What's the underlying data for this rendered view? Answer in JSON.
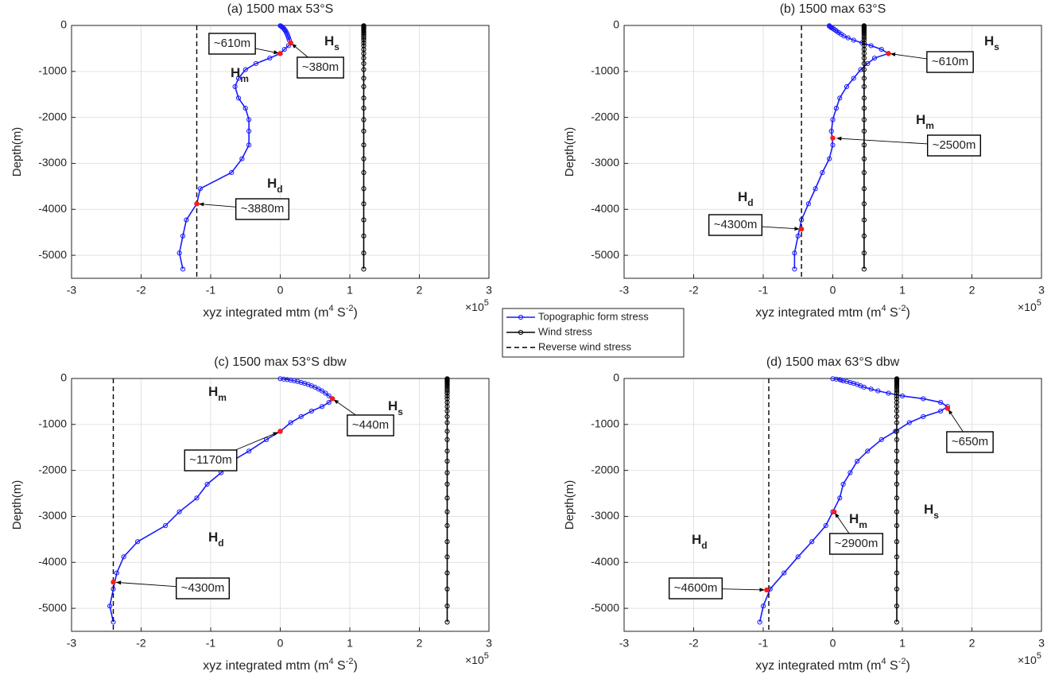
{
  "chart_data": [
    {
      "type": "line",
      "title": "(a) 1500 max 53°S",
      "xlabel": [
        "xyz integrated mtm (m",
        "4",
        " S",
        "-2",
        ")"
      ],
      "x_multiplier": {
        "base": "×10",
        "exp": "5"
      },
      "ylabel": "Depth(m)",
      "xlim": [
        -3,
        3
      ],
      "xticks": [
        -3,
        -2,
        -1,
        0,
        1,
        2,
        3
      ],
      "ylim": [
        -5500,
        0
      ],
      "yticks": [
        -5000,
        -4000,
        -3000,
        -2000,
        -1000,
        0
      ],
      "grid": true,
      "depth": [
        -5,
        -15,
        -25,
        -35,
        -50,
        -65,
        -85,
        -105,
        -130,
        -160,
        -190,
        -230,
        -270,
        -320,
        -380,
        -440,
        -520,
        -610,
        -710,
        -830,
        -960,
        -1150,
        -1330,
        -1580,
        -1800,
        -2050,
        -2300,
        -2600,
        -2900,
        -3200,
        -3550,
        -3880,
        -4230,
        -4580,
        -4950,
        -5300
      ],
      "series": [
        {
          "name": "Topographic form stress",
          "color": "#1a1aff",
          "values": [
            0,
            0.01,
            0.02,
            0.03,
            0.04,
            0.05,
            0.06,
            0.07,
            0.08,
            0.09,
            0.1,
            0.11,
            0.12,
            0.13,
            0.15,
            0.12,
            0.06,
            0,
            -0.15,
            -0.35,
            -0.5,
            -0.6,
            -0.65,
            -0.6,
            -0.5,
            -0.45,
            -0.45,
            -0.45,
            -0.55,
            -0.7,
            -1.15,
            -1.2,
            -1.35,
            -1.4,
            -1.45,
            -1.4
          ]
        },
        {
          "name": "Wind stress",
          "color": "#000000",
          "values": [
            1.2,
            1.2,
            1.2,
            1.2,
            1.2,
            1.2,
            1.2,
            1.2,
            1.2,
            1.2,
            1.2,
            1.2,
            1.2,
            1.2,
            1.2,
            1.2,
            1.2,
            1.2,
            1.2,
            1.2,
            1.2,
            1.2,
            1.2,
            1.2,
            1.2,
            1.2,
            1.2,
            1.2,
            1.2,
            1.2,
            1.2,
            1.2,
            1.2,
            1.2,
            1.2,
            1.2
          ]
        },
        {
          "name": "Reverse wind stress",
          "color": "#000000",
          "dashed": true,
          "value": -1.2
        }
      ],
      "annotations": [
        {
          "text": "~610m",
          "x": 0,
          "y": -610
        },
        {
          "text": "~380m",
          "x": 0.15,
          "y": -380
        },
        {
          "text": "~3880m",
          "x": -1.2,
          "y": -3880
        }
      ],
      "h_labels": [
        {
          "text": "H",
          "sub": "s"
        },
        {
          "text": "H",
          "sub": "m"
        },
        {
          "text": "H",
          "sub": "d"
        }
      ]
    },
    {
      "type": "line",
      "title": "(b) 1500 max 63°S",
      "xlabel": [
        "xyz integrated mtm (m",
        "4",
        " S",
        "-2",
        ")"
      ],
      "x_multiplier": {
        "base": "×10",
        "exp": "5"
      },
      "ylabel": "Depth(m)",
      "xlim": [
        -3,
        3
      ],
      "xticks": [
        -3,
        -2,
        -1,
        0,
        1,
        2,
        3
      ],
      "ylim": [
        -5500,
        0
      ],
      "yticks": [
        -5000,
        -4000,
        -3000,
        -2000,
        -1000,
        0
      ],
      "grid": true,
      "depth": [
        -5,
        -15,
        -25,
        -35,
        -50,
        -65,
        -85,
        -105,
        -130,
        -160,
        -190,
        -230,
        -270,
        -320,
        -380,
        -440,
        -520,
        -610,
        -710,
        -830,
        -960,
        -1150,
        -1330,
        -1580,
        -1800,
        -2050,
        -2300,
        -2600,
        -2900,
        -3200,
        -3550,
        -3880,
        -4230,
        -4580,
        -4950,
        -5300
      ],
      "series": [
        {
          "name": "Topographic form stress",
          "color": "#1a1aff",
          "values": [
            -0.05,
            -0.05,
            -0.04,
            -0.03,
            -0.02,
            0,
            0.02,
            0.04,
            0.06,
            0.09,
            0.12,
            0.16,
            0.22,
            0.3,
            0.42,
            0.55,
            0.7,
            0.8,
            0.6,
            0.5,
            0.4,
            0.3,
            0.2,
            0.1,
            0.05,
            0,
            -0.02,
            0,
            -0.05,
            -0.15,
            -0.25,
            -0.35,
            -0.45,
            -0.5,
            -0.55,
            -0.55
          ]
        },
        {
          "name": "Wind stress",
          "color": "#000000",
          "values": [
            0.45,
            0.45,
            0.45,
            0.45,
            0.45,
            0.45,
            0.45,
            0.45,
            0.45,
            0.45,
            0.45,
            0.45,
            0.45,
            0.45,
            0.45,
            0.45,
            0.45,
            0.45,
            0.45,
            0.45,
            0.45,
            0.45,
            0.45,
            0.45,
            0.45,
            0.45,
            0.45,
            0.45,
            0.45,
            0.45,
            0.45,
            0.45,
            0.45,
            0.45,
            0.45,
            0.45
          ]
        },
        {
          "name": "Reverse wind stress",
          "color": "#000000",
          "dashed": true,
          "value": -0.45
        }
      ],
      "annotations": [
        {
          "text": "~610m",
          "x": 0.8,
          "y": -610
        },
        {
          "text": "~2500m",
          "x": 0,
          "y": -2450
        },
        {
          "text": "~4300m",
          "x": -0.45,
          "y": -4430
        }
      ],
      "h_labels": [
        {
          "text": "H",
          "sub": "s"
        },
        {
          "text": "H",
          "sub": "m"
        },
        {
          "text": "H",
          "sub": "d"
        }
      ]
    },
    {
      "type": "line",
      "title": "(c) 1500 max 53°S dbw",
      "xlabel": [
        "xyz integrated mtm (m",
        "4",
        " S",
        "-2",
        ")"
      ],
      "x_multiplier": {
        "base": "×10",
        "exp": "5"
      },
      "ylabel": "Depth(m)",
      "xlim": [
        -3,
        3
      ],
      "xticks": [
        -3,
        -2,
        -1,
        0,
        1,
        2,
        3
      ],
      "ylim": [
        -5500,
        0
      ],
      "yticks": [
        -5000,
        -4000,
        -3000,
        -2000,
        -1000,
        0
      ],
      "grid": true,
      "depth": [
        -5,
        -15,
        -25,
        -35,
        -50,
        -65,
        -85,
        -105,
        -130,
        -160,
        -190,
        -230,
        -270,
        -320,
        -380,
        -440,
        -520,
        -610,
        -710,
        -830,
        -960,
        -1150,
        -1330,
        -1580,
        -1800,
        -2050,
        -2300,
        -2600,
        -2900,
        -3200,
        -3550,
        -3880,
        -4230,
        -4580,
        -4950,
        -5300
      ],
      "series": [
        {
          "name": "Topographic form stress",
          "color": "#1a1aff",
          "values": [
            0,
            0.05,
            0.1,
            0.15,
            0.2,
            0.25,
            0.3,
            0.35,
            0.4,
            0.45,
            0.5,
            0.55,
            0.6,
            0.65,
            0.7,
            0.75,
            0.7,
            0.6,
            0.45,
            0.3,
            0.15,
            0,
            -0.2,
            -0.45,
            -0.7,
            -0.85,
            -1.05,
            -1.2,
            -1.45,
            -1.65,
            -2.05,
            -2.25,
            -2.35,
            -2.4,
            -2.45,
            -2.4
          ]
        },
        {
          "name": "Wind stress",
          "color": "#000000",
          "values": [
            2.4,
            2.4,
            2.4,
            2.4,
            2.4,
            2.4,
            2.4,
            2.4,
            2.4,
            2.4,
            2.4,
            2.4,
            2.4,
            2.4,
            2.4,
            2.4,
            2.4,
            2.4,
            2.4,
            2.4,
            2.4,
            2.4,
            2.4,
            2.4,
            2.4,
            2.4,
            2.4,
            2.4,
            2.4,
            2.4,
            2.4,
            2.4,
            2.4,
            2.4,
            2.4,
            2.4
          ]
        },
        {
          "name": "Reverse wind stress",
          "color": "#000000",
          "dashed": true,
          "value": -2.4
        }
      ],
      "annotations": [
        {
          "text": "~1170m",
          "x": 0,
          "y": -1150
        },
        {
          "text": "~440m",
          "x": 0.75,
          "y": -440
        },
        {
          "text": "~4300m",
          "x": -2.4,
          "y": -4430
        }
      ],
      "h_labels": [
        {
          "text": "H",
          "sub": "m"
        },
        {
          "text": "H",
          "sub": "s"
        },
        {
          "text": "H",
          "sub": "d"
        }
      ]
    },
    {
      "type": "line",
      "title": "(d) 1500 max 63°S dbw",
      "xlabel": [
        "xyz integrated mtm (m",
        "4",
        " S",
        "-2",
        ")"
      ],
      "x_multiplier": {
        "base": "×10",
        "exp": "5"
      },
      "ylabel": "Depth(m)",
      "xlim": [
        -3,
        3
      ],
      "xticks": [
        -3,
        -2,
        -1,
        0,
        1,
        2,
        3
      ],
      "ylim": [
        -5500,
        0
      ],
      "yticks": [
        -5000,
        -4000,
        -3000,
        -2000,
        -1000,
        0
      ],
      "grid": true,
      "depth": [
        -5,
        -15,
        -25,
        -35,
        -50,
        -65,
        -85,
        -105,
        -130,
        -160,
        -190,
        -230,
        -270,
        -320,
        -380,
        -440,
        -520,
        -610,
        -710,
        -830,
        -960,
        -1150,
        -1330,
        -1580,
        -1800,
        -2050,
        -2300,
        -2600,
        -2900,
        -3200,
        -3550,
        -3880,
        -4230,
        -4580,
        -4950,
        -5300
      ],
      "series": [
        {
          "name": "Topographic form stress",
          "color": "#1a1aff",
          "values": [
            0,
            0.05,
            0.1,
            0.12,
            0.15,
            0.2,
            0.25,
            0.3,
            0.35,
            0.4,
            0.45,
            0.55,
            0.65,
            0.8,
            1.0,
            1.3,
            1.55,
            1.65,
            1.55,
            1.3,
            1.1,
            0.9,
            0.7,
            0.5,
            0.35,
            0.25,
            0.15,
            0.1,
            0,
            -0.1,
            -0.3,
            -0.5,
            -0.7,
            -0.9,
            -1.0,
            -1.05
          ]
        },
        {
          "name": "Wind stress",
          "color": "#000000",
          "values": [
            0.92,
            0.92,
            0.92,
            0.92,
            0.92,
            0.92,
            0.92,
            0.92,
            0.92,
            0.92,
            0.92,
            0.92,
            0.92,
            0.92,
            0.92,
            0.92,
            0.92,
            0.92,
            0.92,
            0.92,
            0.92,
            0.92,
            0.92,
            0.92,
            0.92,
            0.92,
            0.92,
            0.92,
            0.92,
            0.92,
            0.92,
            0.92,
            0.92,
            0.92,
            0.92,
            0.92
          ]
        },
        {
          "name": "Reverse wind stress",
          "color": "#000000",
          "dashed": true,
          "value": -0.92
        }
      ],
      "annotations": [
        {
          "text": "~650m",
          "x": 1.65,
          "y": -650
        },
        {
          "text": "~2900m",
          "x": 0.02,
          "y": -2900
        },
        {
          "text": "~4600m",
          "x": -0.95,
          "y": -4600
        }
      ],
      "h_labels": [
        {
          "text": "H",
          "sub": "s"
        },
        {
          "text": "H",
          "sub": "m"
        },
        {
          "text": "H",
          "sub": "d"
        }
      ]
    }
  ]
}
